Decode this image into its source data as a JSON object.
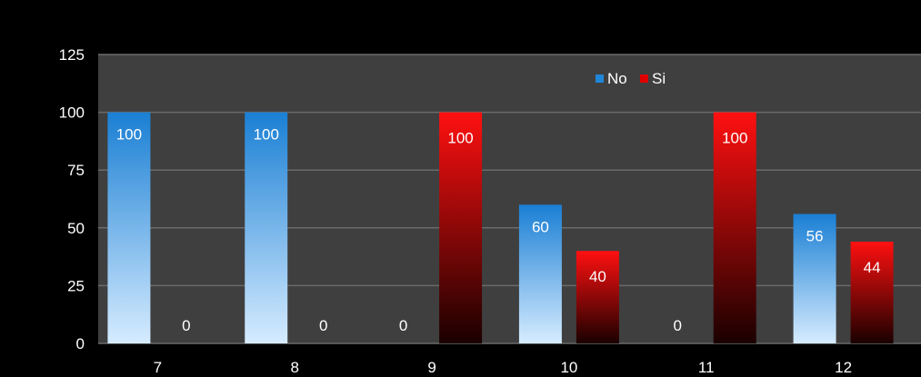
{
  "chart_data": {
    "type": "bar",
    "categories": [
      "7",
      "8",
      "9",
      "10",
      "11",
      "12"
    ],
    "series": [
      {
        "name": "No",
        "values": [
          100,
          100,
          0,
          60,
          0,
          56
        ],
        "color": "#1f86d8"
      },
      {
        "name": "Si",
        "values": [
          0,
          0,
          100,
          40,
          100,
          44
        ],
        "color": "#e00000"
      }
    ],
    "ylim": [
      0,
      125
    ],
    "yticks": [
      "0",
      "25",
      "50",
      "75",
      "100",
      "125"
    ],
    "grid": true,
    "legend": "top-right",
    "background": "#3f3f3f",
    "page_background": "#000000"
  }
}
